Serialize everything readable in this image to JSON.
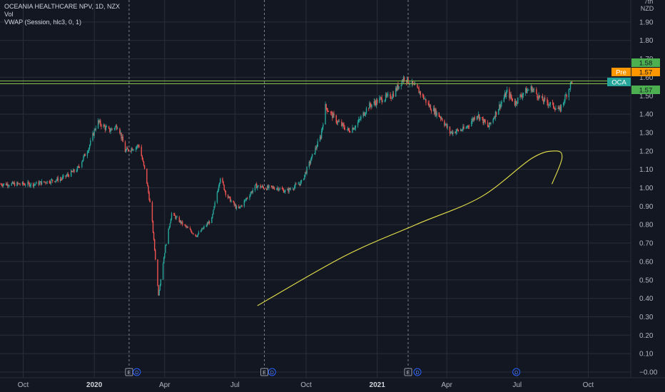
{
  "legend": {
    "symbol_line": "OCEANIA HEALTHCARE NPV, 1D, NZX",
    "vol_line": "Vol",
    "vwap_line": "VWAP (Session, hlc3, 0, 1)"
  },
  "axis": {
    "currency_top": "7th",
    "currency": "NZD"
  },
  "colors": {
    "background": "#131722",
    "grid": "#2a2e39",
    "up": "#26a69a",
    "down": "#ef5350",
    "hline": "#8bc34a",
    "drawing": "#e6e24a",
    "label_green": "#4caf50",
    "label_orange": "#ff9800",
    "label_teal": "#26a69a"
  },
  "badges": {
    "top_green": "1.58",
    "pre_tag": "Pre",
    "pre_value": "1.57",
    "ticker_tag": "OCA",
    "last_value": "1.57"
  },
  "events": [
    "E",
    "D",
    "E",
    "D",
    "E",
    "D",
    "D"
  ],
  "chart_data": {
    "type": "candlestick",
    "title": "OCEANIA HEALTHCARE NPV, 1D, NZX",
    "ylim": [
      0,
      2.0
    ],
    "y_ticks": [
      "−0.00",
      "0.10",
      "0.20",
      "0.30",
      "0.40",
      "0.50",
      "0.60",
      "0.70",
      "0.80",
      "0.90",
      "1.00",
      "1.10",
      "1.20",
      "1.30",
      "1.40",
      "1.50",
      "1.60",
      "1.70",
      "1.80",
      "1.90"
    ],
    "x_ticks": [
      "Oct",
      "2020",
      "Apr",
      "Jul",
      "Oct",
      "2021",
      "Apr",
      "Jul",
      "Oct"
    ],
    "x_start": "2019-09-01",
    "x_end": "2021-11-25",
    "horizontal_lines": [
      1.58,
      1.565
    ],
    "price_path": [
      [
        "2019-09-01",
        1.02
      ],
      [
        "2019-10-15",
        1.02
      ],
      [
        "2019-11-20",
        1.05
      ],
      [
        "2019-12-10",
        1.1
      ],
      [
        "2019-12-25",
        1.22
      ],
      [
        "2020-01-05",
        1.36
      ],
      [
        "2020-01-20",
        1.31
      ],
      [
        "2020-02-01",
        1.34
      ],
      [
        "2020-02-10",
        1.2
      ],
      [
        "2020-02-28",
        1.23
      ],
      [
        "2020-03-08",
        1.06
      ],
      [
        "2020-03-15",
        0.86
      ],
      [
        "2020-03-24",
        0.42
      ],
      [
        "2020-04-02",
        0.68
      ],
      [
        "2020-04-10",
        0.86
      ],
      [
        "2020-04-25",
        0.8
      ],
      [
        "2020-05-12",
        0.74
      ],
      [
        "2020-06-01",
        0.83
      ],
      [
        "2020-06-12",
        1.06
      ],
      [
        "2020-06-20",
        0.96
      ],
      [
        "2020-07-05",
        0.88
      ],
      [
        "2020-07-28",
        1.01
      ],
      [
        "2020-08-10",
        1.0
      ],
      [
        "2020-08-25",
        1.0
      ],
      [
        "2020-09-05",
        0.98
      ],
      [
        "2020-09-25",
        1.03
      ],
      [
        "2020-10-10",
        1.18
      ],
      [
        "2020-10-20",
        1.28
      ],
      [
        "2020-10-26",
        1.44
      ],
      [
        "2020-11-10",
        1.36
      ],
      [
        "2020-11-25",
        1.31
      ],
      [
        "2020-12-05",
        1.34
      ],
      [
        "2020-12-20",
        1.44
      ],
      [
        "2021-01-05",
        1.48
      ],
      [
        "2021-01-20",
        1.5
      ],
      [
        "2021-02-05",
        1.6
      ],
      [
        "2021-02-25",
        1.52
      ],
      [
        "2021-03-10",
        1.44
      ],
      [
        "2021-03-25",
        1.38
      ],
      [
        "2021-04-05",
        1.3
      ],
      [
        "2021-04-25",
        1.32
      ],
      [
        "2021-05-10",
        1.4
      ],
      [
        "2021-05-25",
        1.33
      ],
      [
        "2021-06-05",
        1.42
      ],
      [
        "2021-06-18",
        1.52
      ],
      [
        "2021-06-28",
        1.46
      ],
      [
        "2021-07-10",
        1.52
      ],
      [
        "2021-07-20",
        1.54
      ],
      [
        "2021-08-01",
        1.48
      ],
      [
        "2021-08-15",
        1.45
      ],
      [
        "2021-08-25",
        1.42
      ],
      [
        "2021-09-02",
        1.5
      ],
      [
        "2021-09-10",
        1.58
      ]
    ],
    "drawing_path": [
      [
        "2020-07-30",
        0.36
      ],
      [
        "2020-11-20",
        0.63
      ],
      [
        "2021-02-20",
        0.8
      ],
      [
        "2021-05-15",
        0.95
      ],
      [
        "2021-07-20",
        1.16
      ],
      [
        "2021-08-20",
        1.2
      ],
      [
        "2021-08-28",
        1.16
      ],
      [
        "2021-08-15",
        1.02
      ]
    ]
  }
}
